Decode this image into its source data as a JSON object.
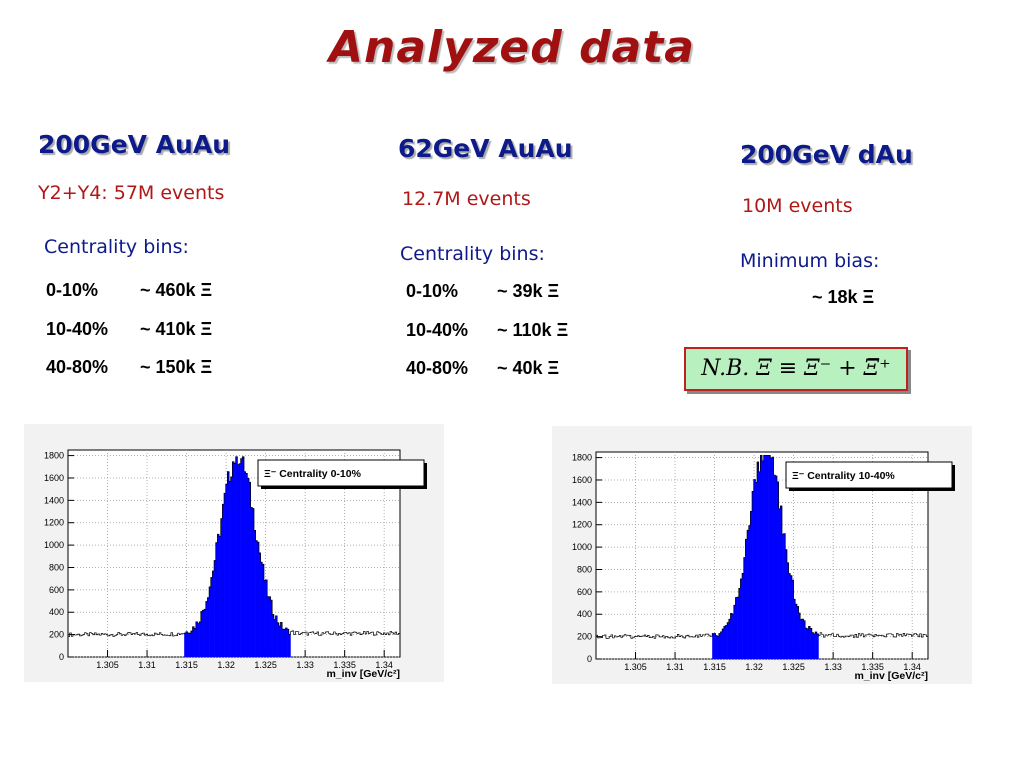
{
  "slide": {
    "title": "Analyzed  data",
    "columns": [
      {
        "header": "200GeV AuAu",
        "events": "Y2+Y4: 57M events",
        "bins_label": "Centrality bins:",
        "bins": [
          {
            "range": "0-10%",
            "count": "~ 460k Ξ"
          },
          {
            "range": "10-40%",
            "count": "~ 410k Ξ"
          },
          {
            "range": "40-80%",
            "count": "~ 150k Ξ"
          }
        ]
      },
      {
        "header": "62GeV AuAu",
        "events": "12.7M events",
        "bins_label": "Centrality bins:",
        "bins": [
          {
            "range": "0-10%",
            "count": "~  39k Ξ"
          },
          {
            "range": "10-40%",
            "count": "~ 110k Ξ"
          },
          {
            "range": "40-80%",
            "count": "~  40k Ξ"
          }
        ]
      },
      {
        "header": "200GeV dAu",
        "events": "10M events",
        "bins_label": "Minimum bias:",
        "bins": [
          {
            "range": "",
            "count": "~  18k  Ξ"
          }
        ]
      }
    ],
    "note": "N.B.  Ξ ≡ Ξ⁻ + Ξ̅⁺"
  },
  "chart_data": [
    {
      "type": "bar",
      "legend": "Ξ⁻ Centrality 0-10%",
      "legend_placement": "top-right",
      "xlabel": "m_inv [GeV/c²]",
      "ylabel": "",
      "xlim": [
        1.3,
        1.342
      ],
      "ylim": [
        0,
        1850
      ],
      "x_ticks": [
        "1.305",
        "1.31",
        "1.315",
        "1.32",
        "1.325",
        "1.33",
        "1.335",
        "1.34"
      ],
      "y_ticks": [
        "0",
        "200",
        "400",
        "600",
        "800",
        "1000",
        "1200",
        "1400",
        "1600",
        "1800"
      ],
      "grid": true,
      "peak": {
        "mean": 1.3215,
        "sigma": 0.0022,
        "height": 1600,
        "max": 1790
      },
      "background_level": 200,
      "signal_window": [
        1.3147,
        1.3283
      ],
      "signal_color": "#0000ff"
    },
    {
      "type": "bar",
      "legend": "Ξ⁻ Centrality 10-40%",
      "legend_placement": "top-right",
      "xlabel": "m_inv [GeV/c²]",
      "ylabel": "",
      "xlim": [
        1.3,
        1.342
      ],
      "ylim": [
        0,
        1850
      ],
      "x_ticks": [
        "1.305",
        "1.31",
        "1.315",
        "1.32",
        "1.325",
        "1.33",
        "1.335",
        "1.34"
      ],
      "y_ticks": [
        "0",
        "200",
        "400",
        "600",
        "800",
        "1000",
        "1200",
        "1400",
        "1600",
        "1800"
      ],
      "grid": true,
      "peak": {
        "mean": 1.3215,
        "sigma": 0.0021,
        "height": 1650,
        "max": 1820
      },
      "background_level": 200,
      "signal_window": [
        1.3147,
        1.3283
      ],
      "signal_color": "#0000ff"
    }
  ]
}
